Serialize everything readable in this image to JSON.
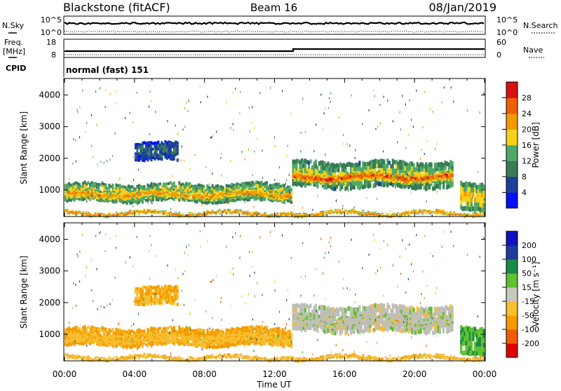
{
  "header": {
    "title": "Blackstone (fitACF)",
    "beam": "Beam 16",
    "date": "08/Jan/2019"
  },
  "strips": {
    "nsky_label": "N.Sky",
    "nsearch_label": "N.Search",
    "freq_label_1": "Freq.",
    "freq_label_2": "[MHz]",
    "nave_label": "Nave",
    "cpid_label": "CPID",
    "cpid_value": "normal (fast) 151",
    "noise_ticks_left": [
      "10^5",
      "10^0"
    ],
    "noise_ticks_right": [
      "10^5",
      "10^0"
    ],
    "freq_ticks": [
      "18",
      "8"
    ],
    "nave_ticks": [
      "60",
      "0"
    ]
  },
  "colors": {
    "power": [
      "#0010ff",
      "#1a3f9c",
      "#3a7a55",
      "#4fa868",
      "#f4d21a",
      "#f29b00",
      "#f06000",
      "#d81010"
    ],
    "velocity": [
      "#e00000",
      "#f05a00",
      "#f59b00",
      "#f5bf30",
      "#c8c8c0",
      "#60c030",
      "#1a8a4a",
      "#1e3a9c",
      "#1010c0"
    ],
    "ground": "#bfbfb8"
  },
  "chart_data": [
    {
      "type": "heatmap",
      "panel": "power",
      "ylabel": "Slant Range [km]",
      "xlabel": "Time UT",
      "x_ticks": [
        "00:00",
        "04:00",
        "08:00",
        "12:00",
        "16:00",
        "20:00",
        "00:00"
      ],
      "xlim_hours": [
        0,
        24
      ],
      "y_ticks": [
        1000,
        2000,
        3000,
        4000
      ],
      "ylim_km": [
        180,
        4500
      ],
      "colorbar_label": "Power [dB]",
      "colorbar_ticks": [
        "4",
        "8",
        "12",
        "16",
        "20",
        "24",
        "28"
      ],
      "colorbar_range": [
        0,
        32
      ]
    },
    {
      "type": "heatmap",
      "panel": "velocity",
      "ylabel": "Slant Range [km]",
      "xlabel": "Time UT",
      "x_ticks": [
        "00:00",
        "04:00",
        "08:00",
        "12:00",
        "16:00",
        "20:00",
        "00:00"
      ],
      "xlim_hours": [
        0,
        24
      ],
      "y_ticks": [
        1000,
        2000,
        3000,
        4000
      ],
      "ylim_km": [
        180,
        4500
      ],
      "colorbar_label": "Velocity [m s⁻¹]",
      "colorbar_ticks": [
        "-200",
        "-100",
        "-50",
        "-15",
        "15",
        "50",
        "100",
        "200"
      ],
      "colorbar_range": [
        -250,
        250
      ]
    }
  ],
  "echo_bands": [
    {
      "t_start": 0.0,
      "t_end": 13.0,
      "r_low": 620,
      "r_high": 1200,
      "power": 18,
      "velocity": -60
    },
    {
      "t_start": 0.2,
      "t_end": 12.8,
      "r_low": 700,
      "r_high": 1000,
      "power": 23,
      "velocity": -35
    },
    {
      "t_start": 0.0,
      "t_end": 13.0,
      "r_low": 200,
      "r_high": 320,
      "power": 25,
      "velocity": -40
    },
    {
      "t_start": 13.0,
      "t_end": 22.1,
      "r_low": 1050,
      "r_high": 1900,
      "power": 17,
      "velocity": 0
    },
    {
      "t_start": 13.0,
      "t_end": 22.1,
      "r_low": 1250,
      "r_high": 1550,
      "power": 27,
      "velocity": 0
    },
    {
      "t_start": 22.6,
      "t_end": 24.0,
      "r_low": 350,
      "r_high": 1250,
      "power": 20,
      "velocity": 40
    },
    {
      "t_start": 13.0,
      "t_end": 24.0,
      "r_low": 200,
      "r_high": 320,
      "power": 24,
      "velocity": -45
    },
    {
      "t_start": 4.0,
      "t_end": 6.5,
      "r_low": 1900,
      "r_high": 2500,
      "power": 8,
      "velocity": -50
    }
  ]
}
